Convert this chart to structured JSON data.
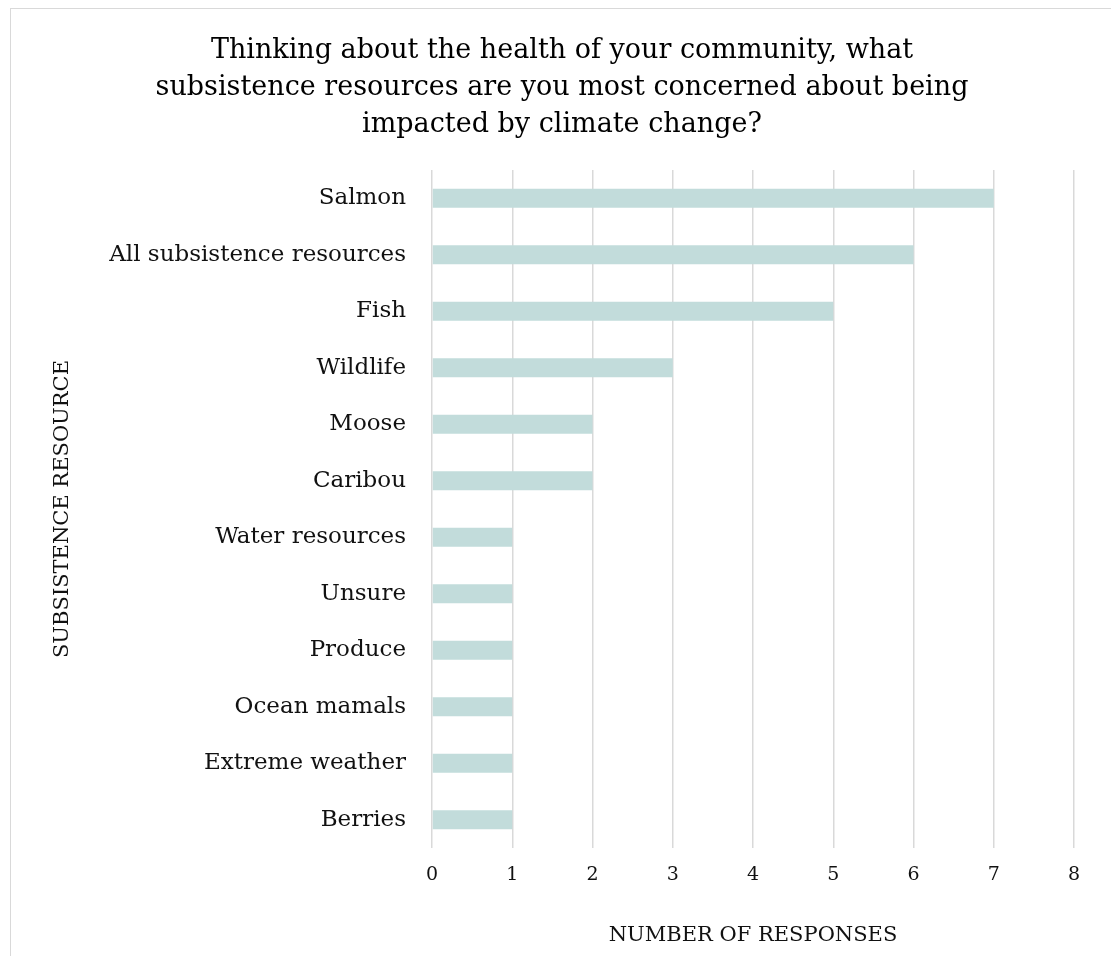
{
  "chart_data": {
    "type": "bar",
    "orientation": "horizontal",
    "title": "Thinking about the health of your community, what subsistence resources are you most concerned about being impacted by climate change?",
    "xlabel": "NUMBER OF RESPONSES",
    "ylabel": "SUBSISTENCE RESOURCE",
    "categories": [
      "Salmon",
      "All subsistence resources",
      "Fish",
      "Wildlife",
      "Moose",
      "Caribou",
      "Water resources",
      "Unsure",
      "Produce",
      "Ocean mamals",
      "Extreme weather",
      "Berries"
    ],
    "values": [
      7,
      6,
      5,
      3,
      2,
      2,
      1,
      1,
      1,
      1,
      1,
      1
    ],
    "color": "#c2dcdb",
    "xlim": [
      0,
      8
    ],
    "xticks": [
      0,
      1,
      2,
      3,
      4,
      5,
      6,
      7,
      8
    ],
    "grid": "x"
  }
}
